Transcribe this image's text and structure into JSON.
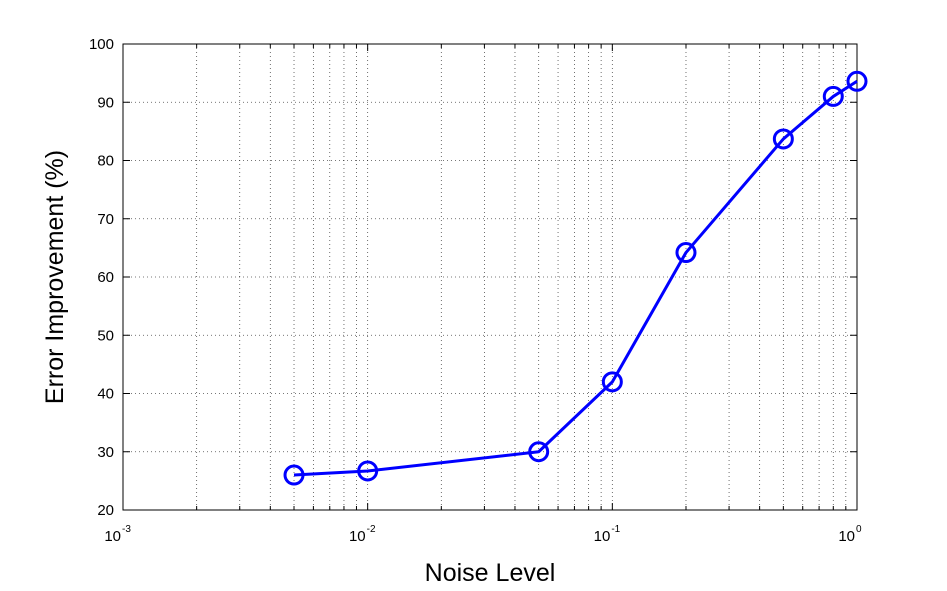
{
  "chart_data": {
    "type": "line",
    "xlabel": "Noise Level",
    "ylabel": "Error Improvement (%)",
    "xscale": "log",
    "xlim": [
      0.001,
      1
    ],
    "ylim": [
      20,
      100
    ],
    "xticks": [
      {
        "value": 0.001,
        "base": "10",
        "exp": "-3"
      },
      {
        "value": 0.01,
        "base": "10",
        "exp": "-2"
      },
      {
        "value": 0.1,
        "base": "10",
        "exp": "-1"
      },
      {
        "value": 1,
        "base": "10",
        "exp": "0"
      }
    ],
    "yticks": [
      {
        "value": 20,
        "label": "20"
      },
      {
        "value": 30,
        "label": "30"
      },
      {
        "value": 40,
        "label": "40"
      },
      {
        "value": 50,
        "label": "50"
      },
      {
        "value": 60,
        "label": "60"
      },
      {
        "value": 70,
        "label": "70"
      },
      {
        "value": 80,
        "label": "80"
      },
      {
        "value": 90,
        "label": "90"
      },
      {
        "value": 100,
        "label": "100"
      }
    ],
    "grid": true,
    "series": [
      {
        "color": "#0000ff",
        "marker": "circle",
        "x": [
          0.005,
          0.01,
          0.05,
          0.1,
          0.2,
          0.5,
          0.8,
          1.0
        ],
        "y": [
          26,
          26.7,
          30,
          42,
          64.2,
          83.7,
          91,
          93.6
        ]
      }
    ]
  }
}
